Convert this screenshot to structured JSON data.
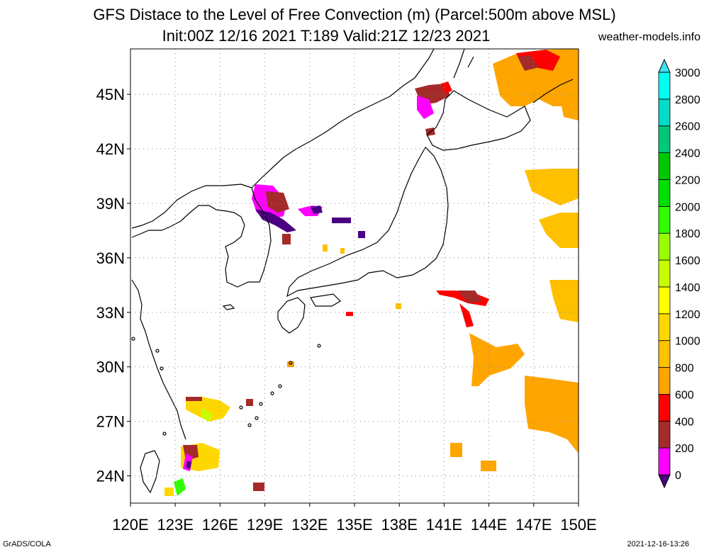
{
  "title_line1": "GFS Distace to the Level of Free Convection (m) (Parcel:500m above MSL)",
  "title_line2": "Init:00Z 12/16 2021 T:189 Valid:21Z 12/23 2021",
  "credit": "weather-models.info",
  "footer_left": "GrADS/COLA",
  "footer_right": "2021-12-16-13:26",
  "lon_labels": [
    "120E",
    "123E",
    "126E",
    "129E",
    "132E",
    "135E",
    "138E",
    "141E",
    "144E",
    "147E",
    "150E"
  ],
  "lat_labels": [
    "24N",
    "27N",
    "30N",
    "33N",
    "36N",
    "39N",
    "42N",
    "45N"
  ],
  "colorbar": {
    "levels": [
      "0",
      "200",
      "400",
      "600",
      "800",
      "1000",
      "1200",
      "1400",
      "1600",
      "1800",
      "2000",
      "2200",
      "2400",
      "2600",
      "2800",
      "3000"
    ],
    "colors": [
      "#4b0082",
      "#ff00ff",
      "#a52a2a",
      "#ff0000",
      "#ffa500",
      "#ffc000",
      "#ffd700",
      "#ffff00",
      "#c8ff00",
      "#96ff00",
      "#32ff00",
      "#00e000",
      "#00c800",
      "#00c878",
      "#00dcc8",
      "#00fff0",
      "#40e0f0"
    ]
  },
  "map_extent": {
    "lon": [
      120,
      150
    ],
    "lat": [
      22.5,
      47.5
    ]
  }
}
